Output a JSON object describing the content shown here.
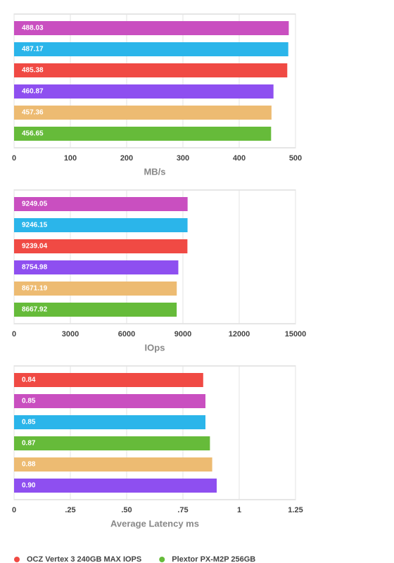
{
  "chart_data": [
    {
      "type": "bar",
      "orientation": "horizontal",
      "xlabel": "MB/s",
      "values": [
        488.03,
        487.17,
        485.38,
        460.87,
        457.36,
        456.65
      ],
      "colors": [
        "#c94fc0",
        "#2bb5ea",
        "#f04a44",
        "#8e4ff0",
        "#edbb72",
        "#66bb3a"
      ],
      "xlim": [
        0,
        500
      ],
      "xticks": [
        0,
        100,
        200,
        300,
        400,
        500
      ],
      "grid": true
    },
    {
      "type": "bar",
      "orientation": "horizontal",
      "xlabel": "IOps",
      "values": [
        9249.05,
        9246.15,
        9239.04,
        8754.98,
        8671.19,
        8667.92
      ],
      "colors": [
        "#c94fc0",
        "#2bb5ea",
        "#f04a44",
        "#8e4ff0",
        "#edbb72",
        "#66bb3a"
      ],
      "xlim": [
        0,
        15000
      ],
      "xticks": [
        0,
        3000,
        6000,
        9000,
        12000,
        15000
      ],
      "grid": true
    },
    {
      "type": "bar",
      "orientation": "horizontal",
      "xlabel": "Average Latency ms",
      "values": [
        0.84,
        0.85,
        0.85,
        0.87,
        0.88,
        0.9
      ],
      "value_labels": [
        "0.84",
        "0.85",
        "0.85",
        "0.87",
        "0.88",
        "0.90"
      ],
      "colors": [
        "#f04a44",
        "#c94fc0",
        "#2bb5ea",
        "#66bb3a",
        "#edbb72",
        "#8e4ff0"
      ],
      "xlim": [
        0,
        1.25
      ],
      "xticks": [
        0,
        {
          "value": 0.25,
          "label": ".25"
        },
        {
          "value": 0.5,
          "label": ".50"
        },
        {
          "value": 0.75,
          "label": ".75"
        },
        1,
        1.25
      ],
      "grid": true
    }
  ],
  "legend": [
    {
      "name": "OCZ Vertex 3 240GB MAX IOPS",
      "color": "#f04a44"
    },
    {
      "name": "Plextor PX-M2P 256GB",
      "color": "#66bb3a"
    }
  ]
}
